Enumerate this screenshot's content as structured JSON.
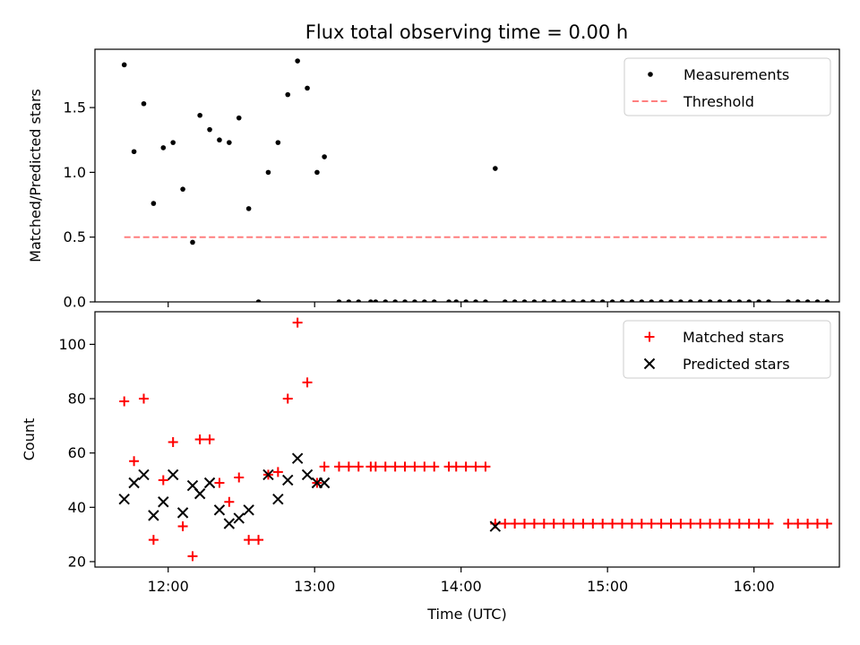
{
  "figure": {
    "title": "Flux total observing time = 0.00 h"
  },
  "chart_data": [
    {
      "type": "scatter",
      "panel": "top",
      "ylabel": "Matched/Predicted stars",
      "xlabel": "",
      "xlim": [
        "11:30",
        "16:35"
      ],
      "ylim": [
        0,
        1.95
      ],
      "yticks": [
        0.0,
        0.5,
        1.0,
        1.5
      ],
      "ytick_labels": [
        "0.0",
        "0.5",
        "1.0",
        "1.5"
      ],
      "xticks": [
        "12:00",
        "13:00",
        "14:00",
        "15:00",
        "16:00"
      ],
      "xtick_labels": [],
      "legend_position": "top-right",
      "series": [
        {
          "name": "Measurements",
          "kind": "points",
          "color": "#000000",
          "points": [
            [
              "11:42",
              1.83
            ],
            [
              "11:46",
              1.16
            ],
            [
              "11:50",
              1.53
            ],
            [
              "11:54",
              0.76
            ],
            [
              "11:58",
              1.19
            ],
            [
              "12:02",
              1.23
            ],
            [
              "12:06",
              0.87
            ],
            [
              "12:10",
              0.46
            ],
            [
              "12:13",
              1.44
            ],
            [
              "12:17",
              1.33
            ],
            [
              "12:21",
              1.25
            ],
            [
              "12:25",
              1.23
            ],
            [
              "12:29",
              1.42
            ],
            [
              "12:33",
              0.72
            ],
            [
              "12:37",
              0.0
            ],
            [
              "12:41",
              1.0
            ],
            [
              "12:45",
              1.23
            ],
            [
              "12:49",
              1.6
            ],
            [
              "12:53",
              1.86
            ],
            [
              "12:57",
              1.65
            ],
            [
              "13:01",
              1.0
            ],
            [
              "13:04",
              1.12
            ],
            [
              "13:10",
              0.0
            ],
            [
              "13:14",
              0.0
            ],
            [
              "13:18",
              0.0
            ],
            [
              "13:23",
              0.0
            ],
            [
              "13:25",
              0.0
            ],
            [
              "13:29",
              0.0
            ],
            [
              "13:33",
              0.0
            ],
            [
              "13:37",
              0.0
            ],
            [
              "13:41",
              0.0
            ],
            [
              "13:45",
              0.0
            ],
            [
              "13:49",
              0.0
            ],
            [
              "13:55",
              0.0
            ],
            [
              "13:58",
              0.0
            ],
            [
              "14:02",
              0.0
            ],
            [
              "14:06",
              0.0
            ],
            [
              "14:10",
              0.0
            ],
            [
              "14:14",
              1.03
            ],
            [
              "14:18",
              0.0
            ],
            [
              "14:22",
              0.0
            ],
            [
              "14:26",
              0.0
            ],
            [
              "14:30",
              0.0
            ],
            [
              "14:34",
              0.0
            ],
            [
              "14:38",
              0.0
            ],
            [
              "14:42",
              0.0
            ],
            [
              "14:46",
              0.0
            ],
            [
              "14:50",
              0.0
            ],
            [
              "14:54",
              0.0
            ],
            [
              "14:58",
              0.0
            ],
            [
              "15:02",
              0.0
            ],
            [
              "15:06",
              0.0
            ],
            [
              "15:10",
              0.0
            ],
            [
              "15:14",
              0.0
            ],
            [
              "15:18",
              0.0
            ],
            [
              "15:22",
              0.0
            ],
            [
              "15:26",
              0.0
            ],
            [
              "15:30",
              0.0
            ],
            [
              "15:34",
              0.0
            ],
            [
              "15:38",
              0.0
            ],
            [
              "15:42",
              0.0
            ],
            [
              "15:46",
              0.0
            ],
            [
              "15:50",
              0.0
            ],
            [
              "15:54",
              0.0
            ],
            [
              "15:58",
              0.0
            ],
            [
              "16:02",
              0.0
            ],
            [
              "16:06",
              0.0
            ],
            [
              "16:14",
              0.0
            ],
            [
              "16:18",
              0.0
            ],
            [
              "16:22",
              0.0
            ],
            [
              "16:26",
              0.0
            ],
            [
              "16:30",
              0.0
            ]
          ]
        },
        {
          "name": "Threshold",
          "kind": "dashed-line",
          "color": "#ff7f7f",
          "points": [
            [
              "11:42",
              0.5
            ],
            [
              "16:30",
              0.5
            ]
          ]
        }
      ]
    },
    {
      "type": "scatter",
      "panel": "bottom",
      "ylabel": "Count",
      "xlabel": "Time (UTC)",
      "xlim": [
        "11:30",
        "16:35"
      ],
      "ylim": [
        18,
        112
      ],
      "yticks": [
        20,
        40,
        60,
        80,
        100
      ],
      "ytick_labels": [
        "20",
        "40",
        "60",
        "80",
        "100"
      ],
      "xticks": [
        "12:00",
        "13:00",
        "14:00",
        "15:00",
        "16:00"
      ],
      "xtick_labels": [
        "12:00",
        "13:00",
        "14:00",
        "15:00",
        "16:00"
      ],
      "legend_position": "top-right",
      "series": [
        {
          "name": "Matched stars",
          "kind": "plus",
          "color": "#ff0000",
          "points": [
            [
              "11:42",
              79
            ],
            [
              "11:46",
              57
            ],
            [
              "11:50",
              80
            ],
            [
              "11:54",
              28
            ],
            [
              "11:58",
              50
            ],
            [
              "12:02",
              64
            ],
            [
              "12:06",
              33
            ],
            [
              "12:10",
              22
            ],
            [
              "12:13",
              65
            ],
            [
              "12:17",
              65
            ],
            [
              "12:21",
              49
            ],
            [
              "12:25",
              42
            ],
            [
              "12:29",
              51
            ],
            [
              "12:33",
              28
            ],
            [
              "12:37",
              28
            ],
            [
              "12:41",
              52
            ],
            [
              "12:45",
              53
            ],
            [
              "12:49",
              80
            ],
            [
              "12:53",
              108
            ],
            [
              "12:57",
              86
            ],
            [
              "13:01",
              49
            ],
            [
              "13:04",
              55
            ],
            [
              "13:10",
              55
            ],
            [
              "13:14",
              55
            ],
            [
              "13:18",
              55
            ],
            [
              "13:23",
              55
            ],
            [
              "13:25",
              55
            ],
            [
              "13:29",
              55
            ],
            [
              "13:33",
              55
            ],
            [
              "13:37",
              55
            ],
            [
              "13:41",
              55
            ],
            [
              "13:45",
              55
            ],
            [
              "13:49",
              55
            ],
            [
              "13:55",
              55
            ],
            [
              "13:58",
              55
            ],
            [
              "14:02",
              55
            ],
            [
              "14:06",
              55
            ],
            [
              "14:10",
              55
            ],
            [
              "14:14",
              34
            ],
            [
              "14:18",
              34
            ],
            [
              "14:22",
              34
            ],
            [
              "14:26",
              34
            ],
            [
              "14:30",
              34
            ],
            [
              "14:34",
              34
            ],
            [
              "14:38",
              34
            ],
            [
              "14:42",
              34
            ],
            [
              "14:46",
              34
            ],
            [
              "14:50",
              34
            ],
            [
              "14:54",
              34
            ],
            [
              "14:58",
              34
            ],
            [
              "15:02",
              34
            ],
            [
              "15:06",
              34
            ],
            [
              "15:10",
              34
            ],
            [
              "15:14",
              34
            ],
            [
              "15:18",
              34
            ],
            [
              "15:22",
              34
            ],
            [
              "15:26",
              34
            ],
            [
              "15:30",
              34
            ],
            [
              "15:34",
              34
            ],
            [
              "15:38",
              34
            ],
            [
              "15:42",
              34
            ],
            [
              "15:46",
              34
            ],
            [
              "15:50",
              34
            ],
            [
              "15:54",
              34
            ],
            [
              "15:58",
              34
            ],
            [
              "16:02",
              34
            ],
            [
              "16:06",
              34
            ],
            [
              "16:14",
              34
            ],
            [
              "16:18",
              34
            ],
            [
              "16:22",
              34
            ],
            [
              "16:26",
              34
            ],
            [
              "16:30",
              34
            ]
          ]
        },
        {
          "name": "Predicted stars",
          "kind": "cross",
          "color": "#000000",
          "points": [
            [
              "11:42",
              43
            ],
            [
              "11:46",
              49
            ],
            [
              "11:50",
              52
            ],
            [
              "11:54",
              37
            ],
            [
              "11:58",
              42
            ],
            [
              "12:02",
              52
            ],
            [
              "12:06",
              38
            ],
            [
              "12:10",
              48
            ],
            [
              "12:13",
              45
            ],
            [
              "12:17",
              49
            ],
            [
              "12:21",
              39
            ],
            [
              "12:25",
              34
            ],
            [
              "12:29",
              36
            ],
            [
              "12:33",
              39
            ],
            [
              "12:41",
              52
            ],
            [
              "12:45",
              43
            ],
            [
              "12:49",
              50
            ],
            [
              "12:53",
              58
            ],
            [
              "12:57",
              52
            ],
            [
              "13:01",
              49
            ],
            [
              "13:04",
              49
            ],
            [
              "14:14",
              33
            ]
          ]
        }
      ]
    }
  ]
}
